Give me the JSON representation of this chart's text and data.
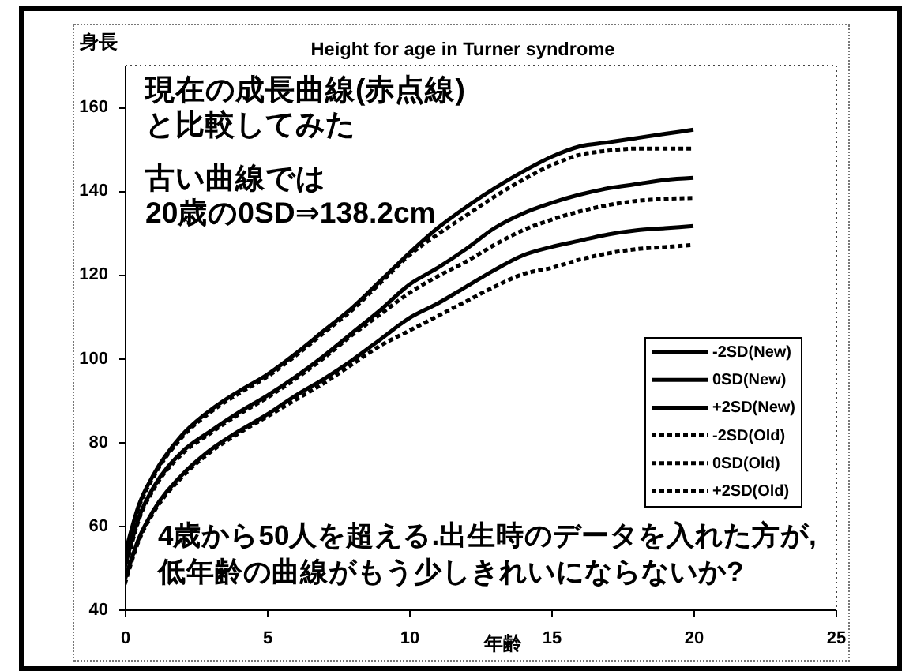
{
  "chart_data": {
    "type": "line",
    "title": "Height for age in Turner syndrome",
    "xlabel": "年齢",
    "ylabel": "身長",
    "xlim": [
      0,
      25
    ],
    "xticks": [
      0,
      5,
      10,
      15,
      20,
      25
    ],
    "ylim": [
      40,
      170
    ],
    "yticks": [
      40,
      60,
      80,
      100,
      120,
      140,
      160
    ],
    "legend": "right",
    "annotations": [
      "現在の成長曲線(赤点線)\nと比較してみた",
      "古い曲線では\n20歳の0SD⇒138.2cm",
      "4歳から50人を超える.出生時のデータを入れた方が,\n低年齢の曲線がもう少しきれいにならないか?"
    ],
    "x": [
      0,
      0.5,
      1,
      2,
      3,
      4,
      5,
      6,
      7,
      8,
      9,
      10,
      11,
      12,
      13,
      14,
      15,
      16,
      17,
      18,
      19,
      20
    ],
    "series": [
      {
        "name": "-2SD(New)",
        "color": "#000000",
        "line_style": "solid",
        "values": [
          47,
          57,
          63.5,
          72,
          78,
          82.5,
          86.5,
          91,
          95,
          99.5,
          104.5,
          109.5,
          113,
          117,
          121,
          124.5,
          126.5,
          128,
          129.5,
          130.5,
          131,
          131.5
        ]
      },
      {
        "name": "0SD(New)",
        "color": "#000000",
        "line_style": "solid",
        "values": [
          50,
          62,
          69,
          77.5,
          82.5,
          87,
          91,
          95.5,
          100.5,
          106,
          111.5,
          117.5,
          121.5,
          126,
          131,
          134.5,
          137,
          139,
          140.5,
          141.5,
          142.5,
          143
        ]
      },
      {
        "name": "+2SD(New)",
        "color": "#000000",
        "line_style": "solid",
        "values": [
          53,
          65,
          72,
          81.5,
          87.5,
          92,
          96,
          101,
          106.5,
          112,
          118.5,
          125,
          131,
          136,
          140.5,
          144.5,
          148,
          150.5,
          151.5,
          152.5,
          153.5,
          154.5
        ]
      },
      {
        "name": "-2SD(Old)",
        "color": "#000000",
        "line_style": "dashed",
        "values": [
          46,
          56.5,
          63,
          71.5,
          77.5,
          82,
          86,
          90,
          94,
          98.5,
          103,
          106.5,
          110,
          113.5,
          117,
          120,
          121.5,
          123.5,
          125,
          126,
          126.5,
          127
        ]
      },
      {
        "name": "0SD(Old)",
        "color": "#000000",
        "line_style": "dashed",
        "values": [
          49,
          61.5,
          68.5,
          77,
          82,
          86.5,
          90.5,
          95,
          100,
          105.5,
          110.5,
          115.5,
          119.5,
          123,
          127,
          130.5,
          133,
          135,
          136.5,
          137.5,
          138,
          138.2
        ]
      },
      {
        "name": "+2SD(Old)",
        "color": "#000000",
        "line_style": "dashed",
        "values": [
          52,
          64.5,
          71.5,
          81,
          87,
          91.5,
          95.5,
          100.5,
          106,
          111.5,
          118,
          124.5,
          129.5,
          134,
          138.5,
          142.5,
          146,
          148.5,
          149.5,
          150,
          150,
          150
        ]
      }
    ]
  }
}
